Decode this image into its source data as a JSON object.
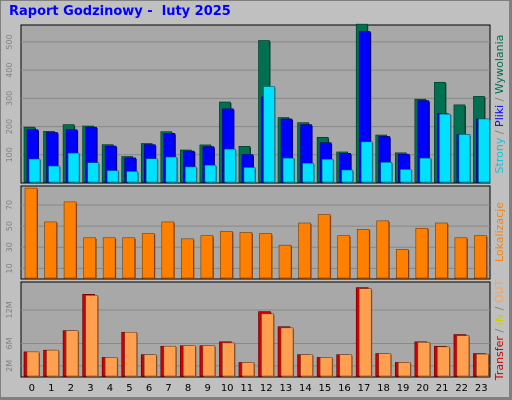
{
  "title": "Raport Godzinowy -  luty 2025",
  "colors": {
    "hits": "#007050",
    "files": "#0000ff",
    "pages": "#00e0ff",
    "visits": "#ff8000",
    "kbin": "#ffa050",
    "kbout": "#d00000",
    "panel": "#c0c0c0",
    "plot": "#a8a8a8"
  },
  "side_labels": {
    "top": [
      {
        "text": "Strony",
        "color": "#00c8e0"
      },
      {
        "text": " / ",
        "color": "#808080"
      },
      {
        "text": "Pliki",
        "color": "#0000ff"
      },
      {
        "text": " / ",
        "color": "#808080"
      },
      {
        "text": "Wywolania",
        "color": "#007050"
      }
    ],
    "mid": [
      {
        "text": "Lokalizacje",
        "color": "#ff8000"
      }
    ],
    "bot": [
      {
        "text": "Transfer",
        "color": "#d00000"
      },
      {
        "text": " / ",
        "color": "#808080"
      },
      {
        "text": "IN",
        "color": "#d0d000"
      },
      {
        "text": " / ",
        "color": "#808080"
      },
      {
        "text": "OUT",
        "color": "#ffa050"
      }
    ]
  },
  "chart_data": [
    {
      "type": "bar",
      "name": "Strony / Pliki / Wywolania",
      "categories": [
        "0",
        "1",
        "2",
        "3",
        "4",
        "5",
        "6",
        "7",
        "8",
        "9",
        "10",
        "11",
        "12",
        "13",
        "14",
        "15",
        "16",
        "17",
        "18",
        "19",
        "20",
        "21",
        "22",
        "23"
      ],
      "ylim": [
        0,
        560
      ],
      "yticks": [
        "100",
        "200",
        "300",
        "400",
        "500"
      ],
      "ytick_values": [
        100,
        200,
        300,
        400,
        500
      ],
      "series": [
        {
          "name": "Wywolania",
          "color_key": "hits",
          "values": [
            198,
            183,
            207,
            202,
            136,
            94,
            140,
            182,
            117,
            135,
            287,
            130,
            505,
            232,
            214,
            162,
            110,
            563,
            170,
            107,
            297,
            357,
            277,
            307
          ]
        },
        {
          "name": "Pliki",
          "color_key": "files",
          "values": [
            189,
            179,
            189,
            198,
            131,
            89,
            136,
            176,
            113,
            129,
            263,
            101,
            305,
            227,
            207,
            143,
            105,
            537,
            165,
            102,
            292,
            246,
            172,
            227
          ]
        },
        {
          "name": "Strony",
          "color_key": "pages",
          "values": [
            85,
            60,
            106,
            72,
            44,
            41,
            86,
            92,
            57,
            63,
            120,
            55,
            342,
            88,
            70,
            84,
            46,
            146,
            73,
            48,
            88,
            244,
            172,
            227
          ]
        }
      ]
    },
    {
      "type": "bar",
      "name": "Lokalizacje",
      "categories": [
        "0",
        "1",
        "2",
        "3",
        "4",
        "5",
        "6",
        "7",
        "8",
        "9",
        "10",
        "11",
        "12",
        "13",
        "14",
        "15",
        "16",
        "17",
        "18",
        "19",
        "20",
        "21",
        "22",
        "23"
      ],
      "ylim": [
        0,
        88
      ],
      "yticks": [
        "10",
        "30",
        "50",
        "70"
      ],
      "ytick_values": [
        10,
        30,
        50,
        70
      ],
      "series": [
        {
          "name": "Lokalizacje",
          "color_key": "visits",
          "values": [
            86,
            54,
            73,
            39,
            39,
            39,
            43,
            54,
            38,
            41,
            45,
            44,
            43,
            32,
            53,
            61,
            41,
            47,
            55,
            28,
            48,
            53,
            39,
            41
          ]
        }
      ]
    },
    {
      "type": "bar",
      "name": "Transfer / IN / OUT",
      "categories": [
        "0",
        "1",
        "2",
        "3",
        "4",
        "5",
        "6",
        "7",
        "8",
        "9",
        "10",
        "11",
        "12",
        "13",
        "14",
        "15",
        "16",
        "17",
        "18",
        "19",
        "20",
        "21",
        "22",
        "23"
      ],
      "ylim": [
        0,
        17
      ],
      "yticks": [
        "2M",
        "6M",
        "12M"
      ],
      "ytick_values": [
        2,
        6,
        12
      ],
      "series": [
        {
          "name": "Transfer",
          "color_key": "kbout",
          "values": [
            4.5,
            4.8,
            8.3,
            14.8,
            3.5,
            8.0,
            4.0,
            5.5,
            5.6,
            5.6,
            6.3,
            2.6,
            11.7,
            9.0,
            4.0,
            3.5,
            4.0,
            16.0,
            4.2,
            2.6,
            6.3,
            5.5,
            7.6,
            4.2
          ]
        },
        {
          "name": "OUT",
          "color_key": "kbin",
          "values": [
            4.5,
            4.8,
            8.3,
            14.6,
            3.5,
            8.0,
            4.0,
            5.5,
            5.6,
            5.6,
            6.1,
            2.6,
            11.3,
            8.8,
            4.0,
            3.5,
            4.0,
            15.8,
            4.2,
            2.6,
            6.2,
            5.4,
            7.4,
            4.1
          ]
        }
      ]
    }
  ]
}
